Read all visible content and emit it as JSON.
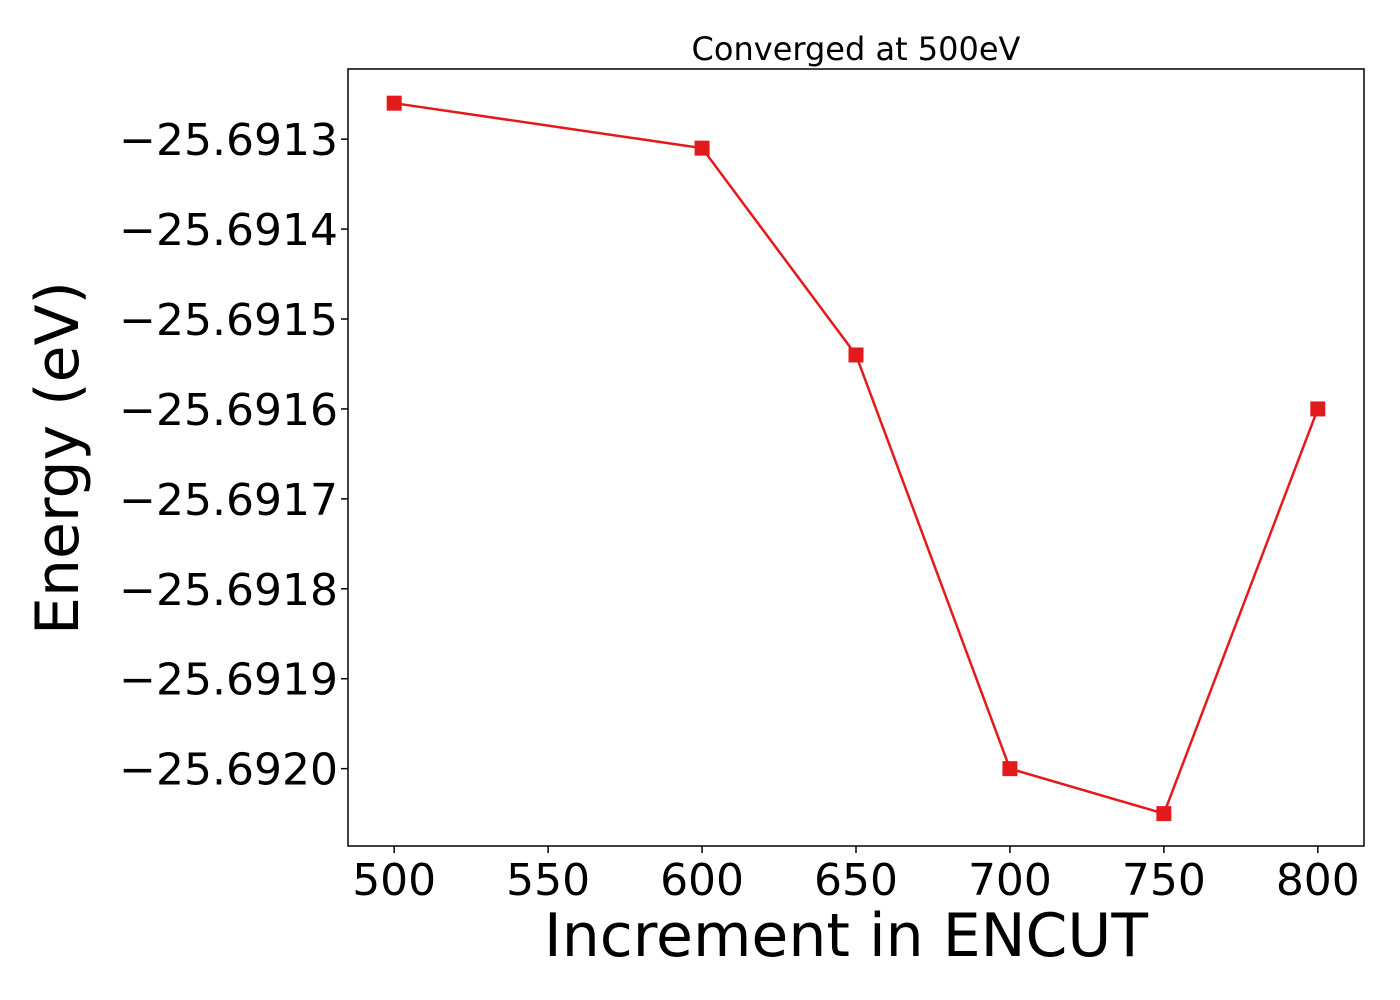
{
  "chart_data": {
    "type": "line",
    "title": "Converged at 500eV",
    "xlabel": "Increment in ENCUT",
    "ylabel": "Energy (eV)",
    "x": [
      500,
      600,
      650,
      700,
      750,
      800
    ],
    "series": [
      {
        "values": [
          -25.69126,
          -25.69131,
          -25.69154,
          -25.692,
          -25.69205,
          -25.6916
        ],
        "color": "#e31a1c",
        "marker": "square"
      }
    ],
    "xticks": [
      500,
      550,
      600,
      650,
      700,
      750,
      800
    ],
    "xtick_labels": [
      "500",
      "550",
      "600",
      "650",
      "700",
      "750",
      "800"
    ],
    "yticks": [
      -25.6913,
      -25.6914,
      -25.6915,
      -25.6916,
      -25.6917,
      -25.6918,
      -25.6919,
      -25.692
    ],
    "ytick_labels": [
      "−25.6913",
      "−25.6914",
      "−25.6915",
      "−25.6916",
      "−25.6917",
      "−25.6918",
      "−25.6919",
      "−25.6920"
    ],
    "xlim": [
      485,
      815
    ],
    "ylim": [
      -25.692086,
      -25.691222
    ],
    "grid": false
  }
}
